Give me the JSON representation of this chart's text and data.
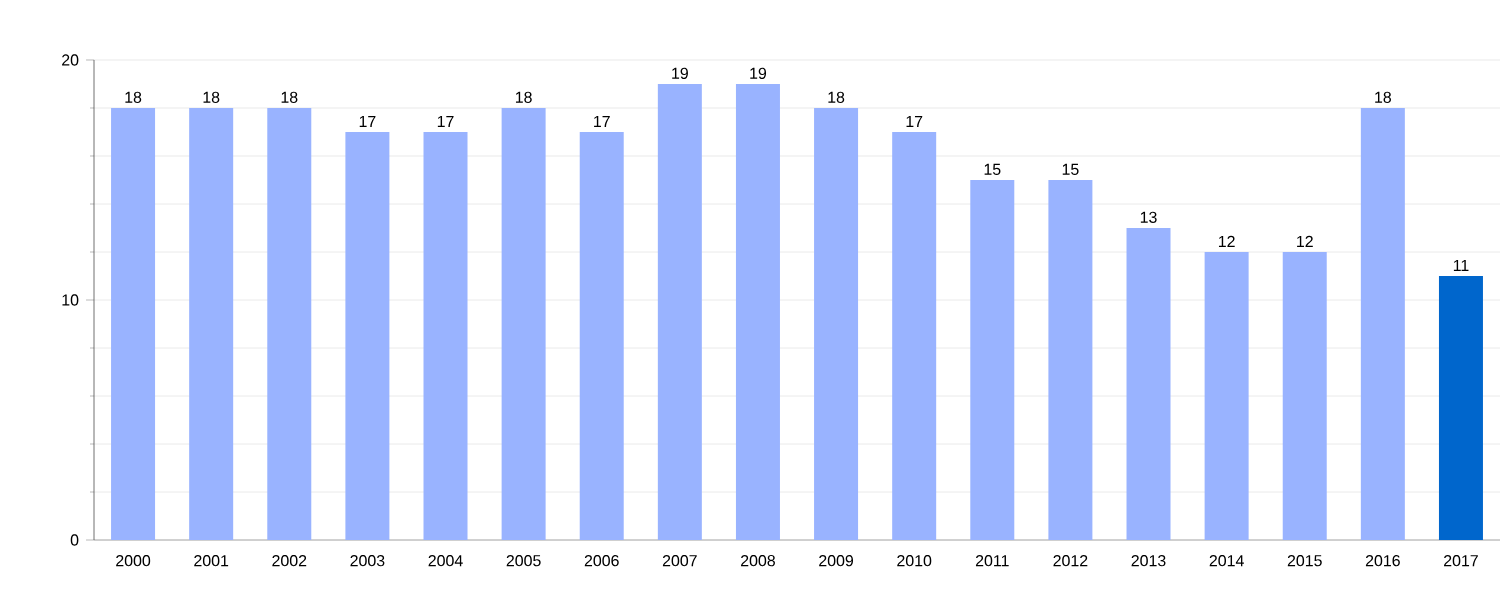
{
  "chart_data": {
    "type": "bar",
    "categories": [
      "2000",
      "2001",
      "2002",
      "2003",
      "2004",
      "2005",
      "2006",
      "2007",
      "2008",
      "2009",
      "2010",
      "2011",
      "2012",
      "2013",
      "2014",
      "2015",
      "2016",
      "2017"
    ],
    "values": [
      18,
      18,
      18,
      17,
      17,
      18,
      17,
      19,
      19,
      18,
      17,
      15,
      15,
      13,
      12,
      12,
      18,
      11
    ],
    "colors": [
      "#99b3ff",
      "#99b3ff",
      "#99b3ff",
      "#99b3ff",
      "#99b3ff",
      "#99b3ff",
      "#99b3ff",
      "#99b3ff",
      "#99b3ff",
      "#99b3ff",
      "#99b3ff",
      "#99b3ff",
      "#99b3ff",
      "#99b3ff",
      "#99b3ff",
      "#99b3ff",
      "#99b3ff",
      "#0066cc"
    ],
    "ylim": [
      0,
      20
    ],
    "yticks": [
      0,
      {
        "value": 2,
        "label": null
      },
      {
        "value": 4,
        "label": null
      },
      {
        "value": 6,
        "label": null
      },
      {
        "value": 8,
        "label": null
      },
      10,
      {
        "value": 12,
        "label": null
      },
      {
        "value": 14,
        "label": null
      },
      {
        "value": 16,
        "label": null
      },
      {
        "value": 18,
        "label": null
      },
      20
    ],
    "grid": "y",
    "data_labels": true
  }
}
